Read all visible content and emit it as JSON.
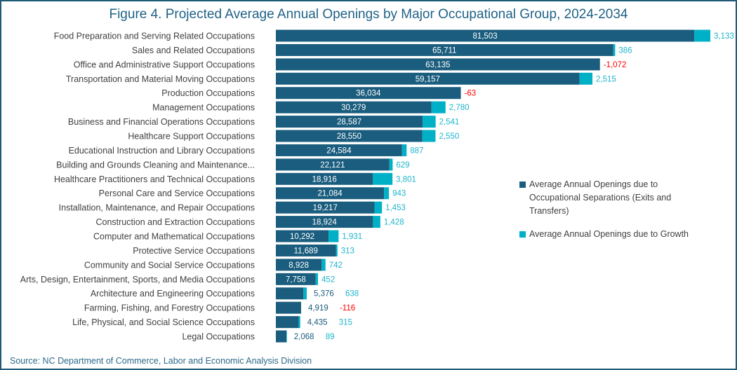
{
  "chart_data": {
    "type": "bar",
    "orientation": "horizontal",
    "stacked": true,
    "title": "Figure 4. Projected Average Annual Openings by Major Occupational Group, 2024-2034",
    "source": "Source: NC Department of Commerce, Labor and Economic Analysis Division",
    "legend_position": "right",
    "grid": false,
    "colors": {
      "separations": "#1a5d7e",
      "growth": "#00b0c6",
      "negative_label": "#ff0000",
      "growth_label": "#1eb5cc"
    },
    "categories": [
      "Food Preparation and Serving Related Occupations",
      "Sales and Related Occupations",
      "Office and Administrative Support Occupations",
      "Transportation and Material Moving Occupations",
      "Production Occupations",
      "Management Occupations",
      "Business and Financial Operations Occupations",
      "Healthcare Support Occupations",
      "Educational Instruction and Library Occupations",
      "Building and Grounds Cleaning and Maintenance...",
      "Healthcare Practitioners and Technical Occupations",
      "Personal Care and Service Occupations",
      "Installation, Maintenance, and Repair Occupations",
      "Construction and Extraction Occupations",
      "Computer and Mathematical Occupations",
      "Protective Service Occupations",
      "Community and Social Service Occupations",
      "Arts, Design, Entertainment, Sports, and Media Occupations",
      "Architecture and Engineering Occupations",
      "Farming, Fishing, and Forestry Occupations",
      "Life, Physical, and Social Science Occupations",
      "Legal Occupations"
    ],
    "series": [
      {
        "name": "Average Annual Openings due to Occupational Separations (Exits and Transfers)",
        "values": [
          81503,
          65711,
          63135,
          59157,
          36034,
          30279,
          28587,
          28550,
          24584,
          22121,
          18916,
          21084,
          19217,
          18924,
          10292,
          11689,
          8928,
          7758,
          5376,
          4919,
          4435,
          2068
        ],
        "labels": [
          "81,503",
          "65,711",
          "63,135",
          "59,157",
          "36,034",
          "30,279",
          "28,587",
          "28,550",
          "24,584",
          "22,121",
          "18,916",
          "21,084",
          "19,217",
          "18,924",
          "10,292",
          "11,689",
          "8,928",
          "7,758",
          "5,376",
          "4,919",
          "4,435",
          "2,068"
        ]
      },
      {
        "name": "Average Annual Openings due to Growth",
        "values": [
          3133,
          386,
          -1072,
          2515,
          -63,
          2780,
          2541,
          2550,
          887,
          629,
          3801,
          943,
          1453,
          1428,
          1931,
          313,
          742,
          452,
          638,
          -116,
          315,
          89
        ],
        "labels": [
          "3,133",
          "386",
          "-1,072",
          "2,515",
          "-63",
          "2,780",
          "2,541",
          "2,550",
          "887",
          "629",
          "3,801",
          "943",
          "1,453",
          "1,428",
          "1,931",
          "313",
          "742",
          "452",
          "638",
          "-116",
          "315",
          "89"
        ]
      }
    ]
  }
}
